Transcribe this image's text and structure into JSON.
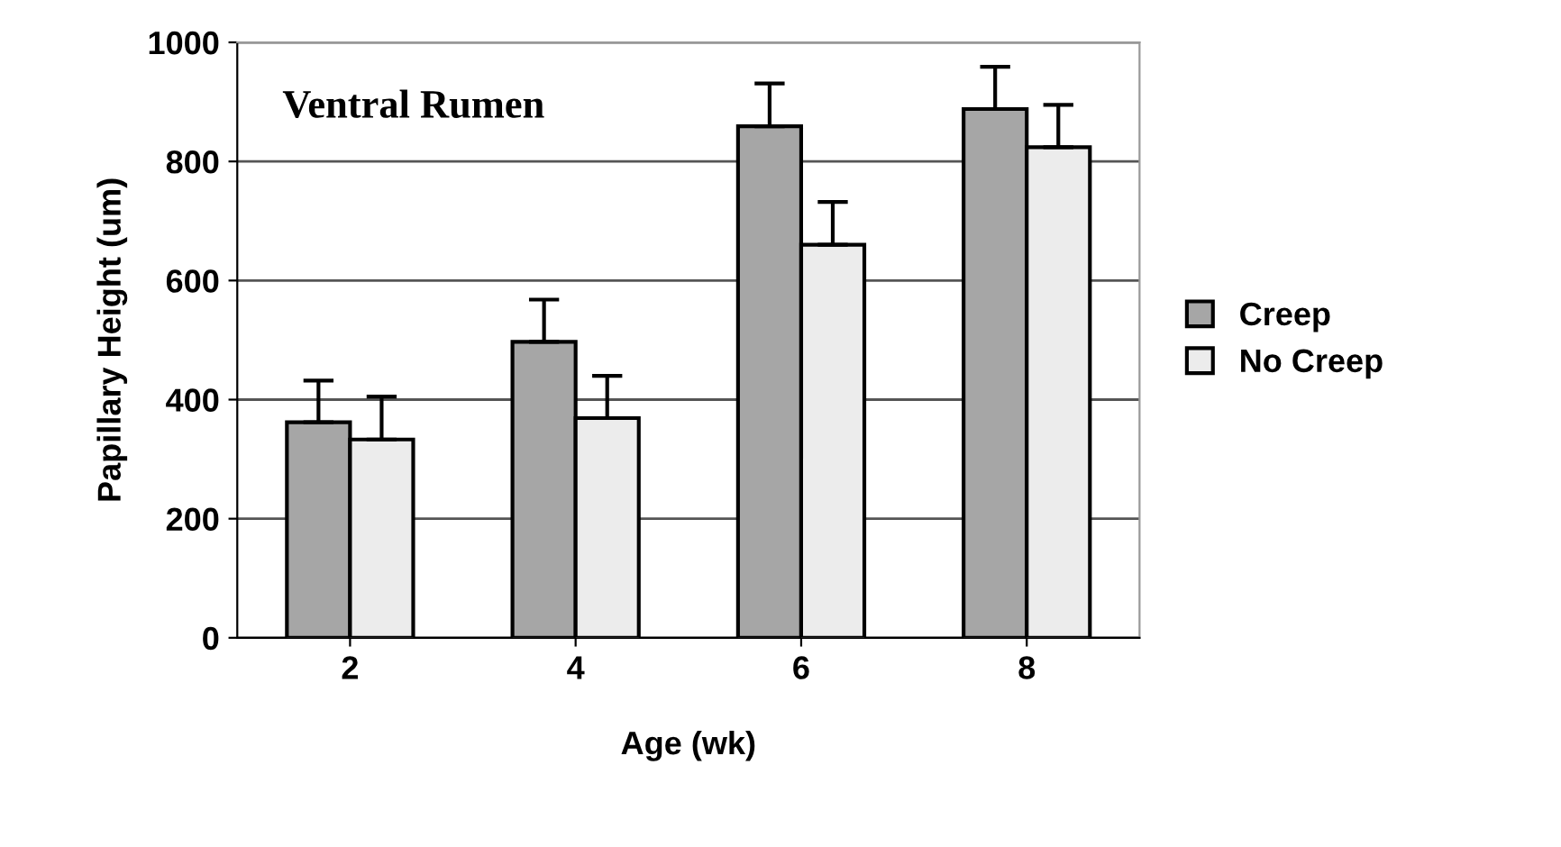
{
  "chart_data": {
    "type": "bar",
    "xlabel": "Age (wk)",
    "ylabel": "Papillary Height (um)",
    "annotations": [
      "Ventral Rumen"
    ],
    "categories": [
      "2",
      "4",
      "6",
      "8"
    ],
    "series": [
      {
        "name": "Creep",
        "color": "#a6a6a6",
        "values": [
          362,
          497,
          859,
          888
        ],
        "errors": [
          [
            362,
            432
          ],
          [
            497,
            568
          ],
          [
            859,
            931
          ],
          [
            888,
            959
          ]
        ]
      },
      {
        "name": "No Creep",
        "color": "#ececec",
        "values": [
          333,
          369,
          660,
          824
        ],
        "errors": [
          [
            333,
            405
          ],
          [
            369,
            440
          ],
          [
            660,
            732
          ],
          [
            824,
            895
          ]
        ]
      }
    ],
    "ylim": [
      0,
      1000
    ],
    "yticks": [
      0,
      200,
      400,
      600,
      800,
      1000
    ],
    "grid": "y",
    "legend": "right"
  }
}
